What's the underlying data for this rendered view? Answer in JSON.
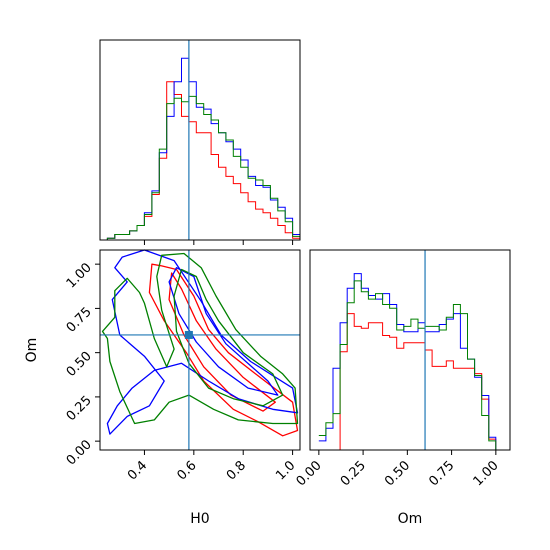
{
  "chart_data": {
    "type": "corner",
    "parameters": [
      "H0",
      "Om"
    ],
    "truth": {
      "H0": 0.58,
      "Om": 0.6
    },
    "colors": {
      "red": "#ff0000",
      "blue": "#0000ff",
      "green": "#008000",
      "truth": "#1f77b4"
    },
    "panels": [
      {
        "type": "histogram-step",
        "parameter": "H0",
        "xlim": [
          0.22,
          1.03
        ],
        "ylim": [
          0,
          1.1
        ],
        "xticks": [
          0.4,
          0.6,
          0.8,
          1.0
        ],
        "bins": [
          0.22,
          0.25,
          0.28,
          0.31,
          0.34,
          0.37,
          0.4,
          0.43,
          0.46,
          0.49,
          0.52,
          0.55,
          0.58,
          0.61,
          0.64,
          0.67,
          0.7,
          0.73,
          0.76,
          0.79,
          0.82,
          0.85,
          0.88,
          0.91,
          0.94,
          0.97,
          1.0,
          1.03
        ],
        "series": [
          {
            "color": "red",
            "values": [
              0.0,
              0.01,
              0.03,
              0.03,
              0.05,
              0.08,
              0.13,
              0.25,
              0.45,
              0.87,
              0.8,
              0.68,
              0.65,
              0.59,
              0.59,
              0.47,
              0.4,
              0.35,
              0.31,
              0.26,
              0.21,
              0.17,
              0.15,
              0.12,
              0.08,
              0.04,
              0.01
            ]
          },
          {
            "color": "blue",
            "values": [
              0.0,
              0.01,
              0.03,
              0.03,
              0.05,
              0.08,
              0.15,
              0.27,
              0.48,
              0.68,
              0.87,
              1.0,
              0.87,
              0.73,
              0.72,
              0.64,
              0.59,
              0.54,
              0.5,
              0.44,
              0.35,
              0.3,
              0.29,
              0.22,
              0.18,
              0.12,
              0.03
            ]
          },
          {
            "color": "green",
            "values": [
              0.0,
              0.01,
              0.03,
              0.03,
              0.05,
              0.08,
              0.14,
              0.26,
              0.5,
              0.75,
              0.78,
              0.76,
              0.79,
              0.75,
              0.69,
              0.66,
              0.59,
              0.55,
              0.46,
              0.4,
              0.34,
              0.33,
              0.3,
              0.23,
              0.16,
              0.1,
              0.02
            ]
          }
        ]
      },
      {
        "type": "contour",
        "x": "H0",
        "y": "Om",
        "xlim": [
          0.22,
          1.03
        ],
        "ylim": [
          -0.05,
          1.08
        ],
        "xticks": [
          0.4,
          0.6,
          0.8,
          1.0
        ],
        "yticks": [
          0.0,
          0.25,
          0.5,
          0.75,
          1.0
        ],
        "xlabel": "H0",
        "ylabel": "Om",
        "contours": [
          {
            "color": "red",
            "points": [
              [
                0.43,
                1.0
              ],
              [
                0.47,
                0.99
              ],
              [
                0.53,
                0.97
              ],
              [
                0.6,
                0.82
              ],
              [
                0.66,
                0.63
              ],
              [
                0.74,
                0.5
              ],
              [
                0.85,
                0.38
              ],
              [
                1.0,
                0.22
              ],
              [
                1.02,
                0.06
              ],
              [
                0.96,
                0.03
              ],
              [
                0.86,
                0.11
              ],
              [
                0.76,
                0.18
              ],
              [
                0.64,
                0.34
              ],
              [
                0.57,
                0.5
              ],
              [
                0.48,
                0.68
              ],
              [
                0.42,
                0.84
              ],
              [
                0.43,
                1.0
              ]
            ]
          },
          {
            "color": "red",
            "points": [
              [
                0.51,
                0.95
              ],
              [
                0.55,
                0.86
              ],
              [
                0.61,
                0.68
              ],
              [
                0.69,
                0.52
              ],
              [
                0.8,
                0.36
              ],
              [
                0.93,
                0.22
              ],
              [
                0.88,
                0.17
              ],
              [
                0.75,
                0.26
              ],
              [
                0.64,
                0.42
              ],
              [
                0.56,
                0.6
              ],
              [
                0.5,
                0.8
              ],
              [
                0.51,
                0.95
              ]
            ]
          },
          {
            "color": "blue",
            "points": [
              [
                0.31,
                1.04
              ],
              [
                0.4,
                1.08
              ],
              [
                0.52,
                1.02
              ],
              [
                0.63,
                0.79
              ],
              [
                0.71,
                0.6
              ],
              [
                0.83,
                0.45
              ],
              [
                1.0,
                0.3
              ],
              [
                1.02,
                0.16
              ],
              [
                0.92,
                0.18
              ],
              [
                0.78,
                0.24
              ],
              [
                0.66,
                0.34
              ],
              [
                0.55,
                0.44
              ],
              [
                0.44,
                0.4
              ],
              [
                0.35,
                0.3
              ],
              [
                0.29,
                0.2
              ],
              [
                0.25,
                0.1
              ],
              [
                0.26,
                0.04
              ],
              [
                0.33,
                0.14
              ],
              [
                0.42,
                0.2
              ],
              [
                0.48,
                0.34
              ],
              [
                0.4,
                0.48
              ],
              [
                0.3,
                0.6
              ],
              [
                0.27,
                0.8
              ],
              [
                0.33,
                0.9
              ],
              [
                0.28,
                0.98
              ],
              [
                0.31,
                1.04
              ]
            ]
          },
          {
            "color": "blue",
            "points": [
              [
                0.53,
                0.98
              ],
              [
                0.6,
                0.93
              ],
              [
                0.65,
                0.72
              ],
              [
                0.73,
                0.55
              ],
              [
                0.9,
                0.34
              ],
              [
                0.94,
                0.26
              ],
              [
                0.82,
                0.3
              ],
              [
                0.7,
                0.42
              ],
              [
                0.61,
                0.56
              ],
              [
                0.54,
                0.72
              ],
              [
                0.5,
                0.9
              ],
              [
                0.53,
                0.98
              ]
            ]
          },
          {
            "color": "green",
            "points": [
              [
                0.47,
                1.05
              ],
              [
                0.56,
                1.06
              ],
              [
                0.63,
                0.98
              ],
              [
                0.69,
                0.82
              ],
              [
                0.77,
                0.63
              ],
              [
                0.87,
                0.48
              ],
              [
                0.96,
                0.38
              ],
              [
                1.01,
                0.3
              ],
              [
                1.02,
                0.1
              ],
              [
                0.92,
                0.1
              ],
              [
                0.78,
                0.12
              ],
              [
                0.68,
                0.18
              ],
              [
                0.58,
                0.26
              ],
              [
                0.5,
                0.22
              ],
              [
                0.44,
                0.12
              ],
              [
                0.36,
                0.1
              ],
              [
                0.3,
                0.28
              ],
              [
                0.26,
                0.45
              ],
              [
                0.25,
                0.58
              ],
              [
                0.23,
                0.62
              ],
              [
                0.28,
                0.7
              ],
              [
                0.28,
                0.85
              ],
              [
                0.33,
                0.92
              ],
              [
                0.38,
                0.84
              ],
              [
                0.4,
                0.78
              ],
              [
                0.44,
                0.58
              ],
              [
                0.49,
                0.42
              ],
              [
                0.52,
                0.52
              ],
              [
                0.47,
                0.74
              ],
              [
                0.45,
                0.93
              ],
              [
                0.47,
                1.05
              ]
            ]
          },
          {
            "color": "green",
            "points": [
              [
                0.55,
                0.97
              ],
              [
                0.61,
                0.93
              ],
              [
                0.65,
                0.8
              ],
              [
                0.7,
                0.68
              ],
              [
                0.8,
                0.5
              ],
              [
                0.92,
                0.38
              ],
              [
                0.96,
                0.26
              ],
              [
                0.88,
                0.2
              ],
              [
                0.76,
                0.24
              ],
              [
                0.66,
                0.3
              ],
              [
                0.58,
                0.44
              ],
              [
                0.53,
                0.62
              ],
              [
                0.52,
                0.82
              ],
              [
                0.55,
                0.97
              ]
            ]
          }
        ]
      },
      {
        "type": "histogram-step",
        "parameter": "Om",
        "xlim": [
          -0.05,
          1.08
        ],
        "ylim": [
          0,
          1.1
        ],
        "xticks": [
          0.0,
          0.25,
          0.5,
          0.75,
          1.0
        ],
        "bins": [
          0.0,
          0.04,
          0.08,
          0.12,
          0.16,
          0.2,
          0.24,
          0.28,
          0.32,
          0.36,
          0.4,
          0.44,
          0.48,
          0.52,
          0.56,
          0.6,
          0.64,
          0.68,
          0.72,
          0.76,
          0.8,
          0.84,
          0.88,
          0.92,
          0.96,
          1.0,
          1.04
        ],
        "series": [
          {
            "color": "red",
            "values": [
              0.0,
              0.0,
              0.0,
              0.54,
              0.75,
              0.68,
              0.67,
              0.7,
              0.7,
              0.63,
              0.62,
              0.56,
              0.59,
              0.59,
              0.59,
              0.55,
              0.46,
              0.46,
              0.49,
              0.45,
              0.45,
              0.45,
              0.42,
              0.28,
              0.06,
              0.0
            ]
          },
          {
            "color": "blue",
            "values": [
              0.05,
              0.12,
              0.45,
              0.7,
              0.89,
              0.97,
              0.89,
              0.85,
              0.83,
              0.86,
              0.8,
              0.69,
              0.65,
              0.65,
              0.7,
              0.65,
              0.65,
              0.69,
              0.72,
              0.75,
              0.56,
              0.5,
              0.4,
              0.3,
              0.07,
              0.0
            ]
          },
          {
            "color": "green",
            "values": [
              0.08,
              0.15,
              0.2,
              0.58,
              0.81,
              0.93,
              0.87,
              0.83,
              0.86,
              0.8,
              0.78,
              0.66,
              0.68,
              0.72,
              0.67,
              0.68,
              0.68,
              0.66,
              0.73,
              0.8,
              0.75,
              0.5,
              0.41,
              0.19,
              0.05,
              0.0
            ]
          }
        ]
      }
    ]
  }
}
